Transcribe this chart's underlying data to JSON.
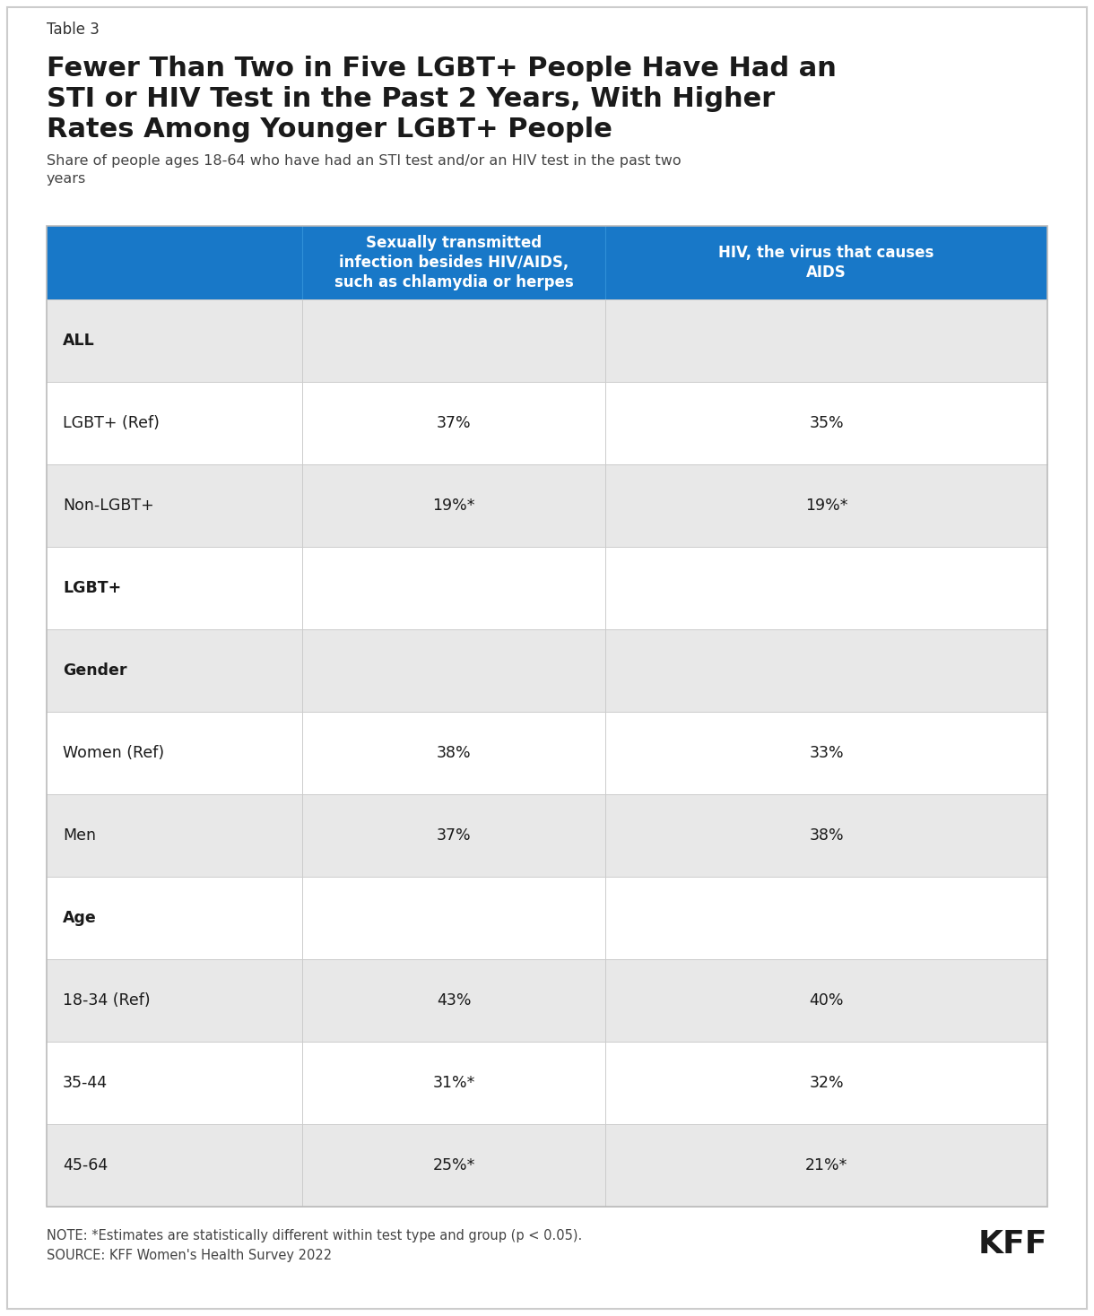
{
  "table_label": "Table 3",
  "title": "Fewer Than Two in Five LGBT+ People Have Had an\nSTI or HIV Test in the Past 2 Years, With Higher\nRates Among Younger LGBT+ People",
  "subtitle": "Share of people ages 18-64 who have had an STI test and/or an HIV test in the past two\nyears",
  "header_col1": "Sexually transmitted\ninfection besides HIV/AIDS,\nsuch as chlamydia or herpes",
  "header_col2": "HIV, the virus that causes\nAIDS",
  "rows": [
    {
      "label": "ALL",
      "col1": "",
      "col2": "",
      "style": "subheader",
      "bg": "#e8e8e8"
    },
    {
      "label": "LGBT+ (Ref)",
      "col1": "37%",
      "col2": "35%",
      "style": "data",
      "bg": "#ffffff"
    },
    {
      "label": "Non-LGBT+",
      "col1": "19%*",
      "col2": "19%*",
      "style": "data",
      "bg": "#e8e8e8"
    },
    {
      "label": "LGBT+",
      "col1": "",
      "col2": "",
      "style": "section_header",
      "bg": "#ffffff"
    },
    {
      "label": "Gender",
      "col1": "",
      "col2": "",
      "style": "subheader",
      "bg": "#e8e8e8"
    },
    {
      "label": "Women (Ref)",
      "col1": "38%",
      "col2": "33%",
      "style": "data",
      "bg": "#ffffff"
    },
    {
      "label": "Men",
      "col1": "37%",
      "col2": "38%",
      "style": "data",
      "bg": "#e8e8e8"
    },
    {
      "label": "Age",
      "col1": "",
      "col2": "",
      "style": "section_header",
      "bg": "#ffffff"
    },
    {
      "label": "18-34 (Ref)",
      "col1": "43%",
      "col2": "40%",
      "style": "data",
      "bg": "#e8e8e8"
    },
    {
      "label": "35-44",
      "col1": "31%*",
      "col2": "32%",
      "style": "data",
      "bg": "#ffffff"
    },
    {
      "label": "45-64",
      "col1": "25%*",
      "col2": "21%*",
      "style": "data",
      "bg": "#e8e8e8"
    }
  ],
  "note": "NOTE: *Estimates are statistically different within test type and group (p < 0.05).\nSOURCE: KFF Women's Health Survey 2022",
  "header_bg": "#1878c8",
  "header_text_color": "#ffffff",
  "border_color": "#cccccc",
  "background_color": "#ffffff",
  "outer_border_color": "#bbbbbb",
  "fig_width": 12.2,
  "fig_height": 14.68,
  "dpi": 100
}
